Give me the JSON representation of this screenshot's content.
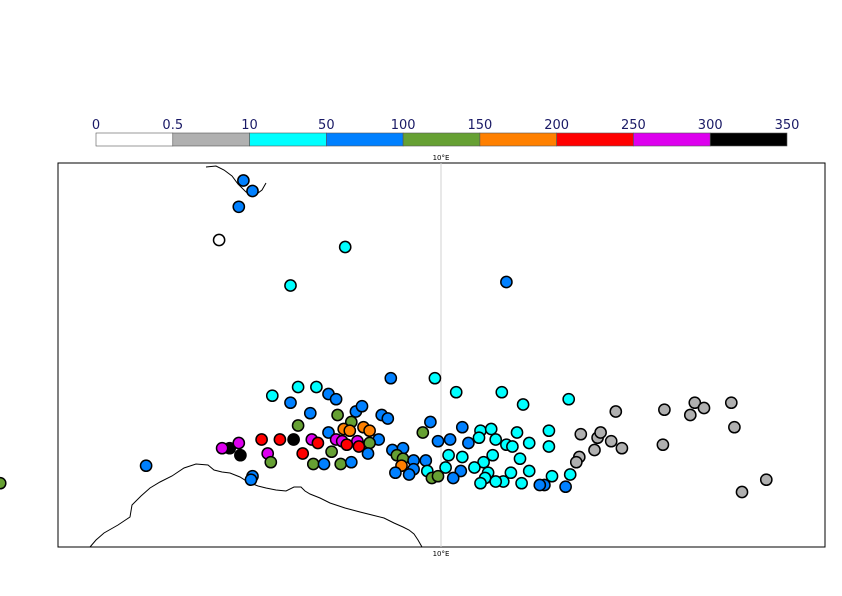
{
  "legend": {
    "ticks": [
      "0",
      "0.5",
      "10",
      "50",
      "100",
      "150",
      "200",
      "250",
      "300",
      "350"
    ],
    "colors": [
      "#ffffff",
      "#b0b0b0",
      "#00ffff",
      "#0080ff",
      "#66a033",
      "#ff8000",
      "#ff0000",
      "#dd00ee",
      "#000000"
    ]
  },
  "map": {
    "lon_label_top": "10°E",
    "lon_label_bottom": "10°E",
    "stations": [
      {
        "lon": -3.0,
        "lat": 74.6,
        "c": 3
      },
      {
        "lon": -2.4,
        "lat": 74.0,
        "c": 3
      },
      {
        "lon": -3.3,
        "lat": 73.1,
        "c": 3
      },
      {
        "lon": -4.6,
        "lat": 71.2,
        "c": 0
      },
      {
        "lon": 3.7,
        "lat": 70.8,
        "c": 2
      },
      {
        "lon": 14.3,
        "lat": 68.8,
        "c": 3
      },
      {
        "lon": 0.1,
        "lat": 68.6,
        "c": 2
      },
      {
        "lon": 6.7,
        "lat": 63.3,
        "c": 3
      },
      {
        "lon": 9.6,
        "lat": 63.3,
        "c": 2
      },
      {
        "lon": 1.8,
        "lat": 62.8,
        "c": 2
      },
      {
        "lon": 0.6,
        "lat": 62.8,
        "c": 2
      },
      {
        "lon": 2.6,
        "lat": 62.4,
        "c": 3
      },
      {
        "lon": 3.1,
        "lat": 62.1,
        "c": 3
      },
      {
        "lon": 11.0,
        "lat": 62.5,
        "c": 2
      },
      {
        "lon": 14.0,
        "lat": 62.5,
        "c": 2
      },
      {
        "lon": 15.4,
        "lat": 61.8,
        "c": 2
      },
      {
        "lon": 18.4,
        "lat": 62.1,
        "c": 2
      },
      {
        "lon": 21.5,
        "lat": 61.4,
        "c": 1
      },
      {
        "lon": 24.7,
        "lat": 61.5,
        "c": 1
      },
      {
        "lon": 26.7,
        "lat": 61.9,
        "c": 1
      },
      {
        "lon": 27.3,
        "lat": 61.6,
        "c": 1
      },
      {
        "lon": 29.1,
        "lat": 61.9,
        "c": 1
      },
      {
        "lon": 26.4,
        "lat": 61.2,
        "c": 1
      },
      {
        "lon": 29.3,
        "lat": 60.5,
        "c": 1
      },
      {
        "lon": -1.1,
        "lat": 62.3,
        "c": 2
      },
      {
        "lon": 0.1,
        "lat": 61.9,
        "c": 3
      },
      {
        "lon": 1.4,
        "lat": 61.3,
        "c": 3
      },
      {
        "lon": 4.4,
        "lat": 61.4,
        "c": 3
      },
      {
        "lon": 4.8,
        "lat": 61.7,
        "c": 3
      },
      {
        "lon": 6.1,
        "lat": 61.2,
        "c": 3
      },
      {
        "lon": 6.5,
        "lat": 61.0,
        "c": 3
      },
      {
        "lon": 9.3,
        "lat": 60.8,
        "c": 3
      },
      {
        "lon": 0.6,
        "lat": 60.6,
        "c": 4
      },
      {
        "lon": 3.2,
        "lat": 61.2,
        "c": 4
      },
      {
        "lon": 4.1,
        "lat": 60.8,
        "c": 4
      },
      {
        "lon": 8.8,
        "lat": 60.2,
        "c": 4
      },
      {
        "lon": 3.6,
        "lat": 60.4,
        "c": 5
      },
      {
        "lon": 4.0,
        "lat": 60.3,
        "c": 5
      },
      {
        "lon": 4.9,
        "lat": 60.5,
        "c": 5
      },
      {
        "lon": 5.3,
        "lat": 60.3,
        "c": 5
      },
      {
        "lon": 2.6,
        "lat": 60.2,
        "c": 3
      },
      {
        "lon": 5.9,
        "lat": 59.8,
        "c": 3
      },
      {
        "lon": 11.4,
        "lat": 60.5,
        "c": 3
      },
      {
        "lon": 12.6,
        "lat": 60.3,
        "c": 2
      },
      {
        "lon": 13.3,
        "lat": 60.4,
        "c": 2
      },
      {
        "lon": 15.0,
        "lat": 60.2,
        "c": 2
      },
      {
        "lon": 17.1,
        "lat": 60.3,
        "c": 2
      },
      {
        "lon": 19.2,
        "lat": 60.1,
        "c": 1
      },
      {
        "lon": 20.3,
        "lat": 59.9,
        "c": 1
      },
      {
        "lon": 20.5,
        "lat": 60.2,
        "c": 1
      },
      {
        "lon": 21.2,
        "lat": 59.7,
        "c": 1
      },
      {
        "lon": -1.8,
        "lat": 59.8,
        "c": 6
      },
      {
        "lon": -0.6,
        "lat": 59.8,
        "c": 6
      },
      {
        "lon": 0.3,
        "lat": 59.8,
        "c": 8
      },
      {
        "lon": 1.5,
        "lat": 59.8,
        "c": 7
      },
      {
        "lon": 3.1,
        "lat": 59.8,
        "c": 7
      },
      {
        "lon": 3.5,
        "lat": 59.7,
        "c": 7
      },
      {
        "lon": 4.5,
        "lat": 59.7,
        "c": 7
      },
      {
        "lon": 1.9,
        "lat": 59.6,
        "c": 6
      },
      {
        "lon": 3.8,
        "lat": 59.5,
        "c": 6
      },
      {
        "lon": 4.6,
        "lat": 59.4,
        "c": 6
      },
      {
        "lon": 5.3,
        "lat": 59.6,
        "c": 4
      },
      {
        "lon": 6.8,
        "lat": 59.2,
        "c": 3
      },
      {
        "lon": 7.5,
        "lat": 59.3,
        "c": 3
      },
      {
        "lon": 9.8,
        "lat": 59.7,
        "c": 3
      },
      {
        "lon": 10.6,
        "lat": 59.8,
        "c": 3
      },
      {
        "lon": 11.8,
        "lat": 59.6,
        "c": 3
      },
      {
        "lon": 12.5,
        "lat": 59.9,
        "c": 2
      },
      {
        "lon": 13.6,
        "lat": 59.8,
        "c": 2
      },
      {
        "lon": 14.3,
        "lat": 59.5,
        "c": 2
      },
      {
        "lon": 14.7,
        "lat": 59.4,
        "c": 2
      },
      {
        "lon": 15.8,
        "lat": 59.6,
        "c": 2
      },
      {
        "lon": 17.1,
        "lat": 59.4,
        "c": 2
      },
      {
        "lon": 21.9,
        "lat": 59.3,
        "c": 1
      },
      {
        "lon": 24.6,
        "lat": 59.5,
        "c": 1
      },
      {
        "lon": 20.1,
        "lat": 59.2,
        "c": 1
      },
      {
        "lon": -3.9,
        "lat": 59.3,
        "c": 8
      },
      {
        "lon": -3.3,
        "lat": 59.6,
        "c": 7
      },
      {
        "lon": -4.4,
        "lat": 59.3,
        "c": 7
      },
      {
        "lon": -3.2,
        "lat": 58.9,
        "c": 8
      },
      {
        "lon": -1.4,
        "lat": 59.0,
        "c": 7
      },
      {
        "lon": 0.9,
        "lat": 59.0,
        "c": 6
      },
      {
        "lon": 2.8,
        "lat": 59.1,
        "c": 4
      },
      {
        "lon": 5.2,
        "lat": 59.0,
        "c": 3
      },
      {
        "lon": 7.1,
        "lat": 58.9,
        "c": 4
      },
      {
        "lon": 7.5,
        "lat": 58.7,
        "c": 4
      },
      {
        "lon": 8.2,
        "lat": 58.6,
        "c": 3
      },
      {
        "lon": 9.0,
        "lat": 58.6,
        "c": 3
      },
      {
        "lon": 10.5,
        "lat": 58.9,
        "c": 2
      },
      {
        "lon": 11.4,
        "lat": 58.8,
        "c": 2
      },
      {
        "lon": 12.8,
        "lat": 58.5,
        "c": 2
      },
      {
        "lon": 13.4,
        "lat": 58.9,
        "c": 2
      },
      {
        "lon": 15.2,
        "lat": 58.7,
        "c": 2
      },
      {
        "lon": 19.1,
        "lat": 58.8,
        "c": 1
      },
      {
        "lon": 18.9,
        "lat": 58.5,
        "c": 1
      },
      {
        "lon": -1.2,
        "lat": 58.5,
        "c": 4
      },
      {
        "lon": 1.6,
        "lat": 58.4,
        "c": 4
      },
      {
        "lon": 2.3,
        "lat": 58.4,
        "c": 3
      },
      {
        "lon": 3.4,
        "lat": 58.4,
        "c": 4
      },
      {
        "lon": 4.1,
        "lat": 58.5,
        "c": 3
      },
      {
        "lon": 7.4,
        "lat": 58.3,
        "c": 5
      },
      {
        "lon": 8.2,
        "lat": 58.1,
        "c": 3
      },
      {
        "lon": 9.1,
        "lat": 58.0,
        "c": 2
      },
      {
        "lon": 10.3,
        "lat": 58.2,
        "c": 2
      },
      {
        "lon": 11.3,
        "lat": 58.0,
        "c": 3
      },
      {
        "lon": 12.2,
        "lat": 58.2,
        "c": 2
      },
      {
        "lon": 13.1,
        "lat": 57.9,
        "c": 2
      },
      {
        "lon": 14.6,
        "lat": 57.9,
        "c": 2
      },
      {
        "lon": 15.8,
        "lat": 58.0,
        "c": 2
      },
      {
        "lon": 17.3,
        "lat": 57.7,
        "c": 2
      },
      {
        "lon": 18.5,
        "lat": 57.8,
        "c": 2
      },
      {
        "lon": -9.4,
        "lat": 58.3,
        "c": 3
      },
      {
        "lon": 7.0,
        "lat": 57.9,
        "c": 3
      },
      {
        "lon": 7.9,
        "lat": 57.8,
        "c": 3
      },
      {
        "lon": 9.4,
        "lat": 57.6,
        "c": 4
      },
      {
        "lon": 9.8,
        "lat": 57.7,
        "c": 4
      },
      {
        "lon": 10.8,
        "lat": 57.6,
        "c": 3
      },
      {
        "lon": 12.9,
        "lat": 57.6,
        "c": 2
      },
      {
        "lon": 14.1,
        "lat": 57.4,
        "c": 2
      },
      {
        "lon": 15.3,
        "lat": 57.3,
        "c": 2
      },
      {
        "lon": 16.8,
        "lat": 57.2,
        "c": 3
      },
      {
        "lon": 16.5,
        "lat": 57.2,
        "c": 3
      },
      {
        "lon": 18.2,
        "lat": 57.1,
        "c": 3
      },
      {
        "lon": -2.4,
        "lat": 57.7,
        "c": 3
      },
      {
        "lon": -2.5,
        "lat": 57.5,
        "c": 3
      },
      {
        "lon": -19.0,
        "lat": 57.3,
        "c": 4
      },
      {
        "lon": 31.4,
        "lat": 57.5,
        "c": 1
      },
      {
        "lon": 29.8,
        "lat": 56.8,
        "c": 1
      },
      {
        "lon": 12.6,
        "lat": 57.3,
        "c": 2
      },
      {
        "lon": 13.6,
        "lat": 57.4,
        "c": 2
      }
    ]
  }
}
